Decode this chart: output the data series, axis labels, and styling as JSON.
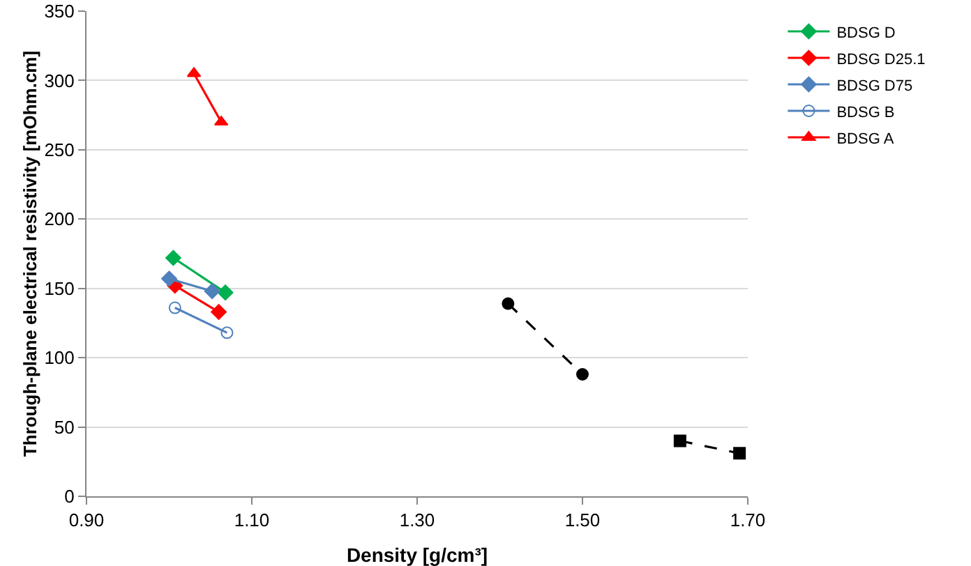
{
  "chart_data": {
    "type": "line",
    "xlabel": "Density [g/cm³]",
    "ylabel": "Through-plane electrical resistivity [mOhm.cm]",
    "xlim": [
      0.9,
      1.7
    ],
    "xticks": [
      {
        "value": 0.9,
        "label": "0.90"
      },
      {
        "value": 1.1,
        "label": "1.10"
      },
      {
        "value": 1.3,
        "label": "1.30"
      },
      {
        "value": 1.5,
        "label": "1.50"
      },
      {
        "value": 1.7,
        "label": "1.70"
      }
    ],
    "ylim": [
      0,
      350
    ],
    "yticks": [
      0,
      50,
      100,
      150,
      200,
      250,
      300,
      350
    ],
    "grid": "y",
    "legend": "right",
    "series": [
      {
        "color": "#000000",
        "marker": "square",
        "line_style": "dashed",
        "x": [
          1.618,
          1.69
        ],
        "values": [
          40,
          31
        ]
      },
      {
        "color": "#000000",
        "marker": "circle",
        "line_style": "dashed",
        "x": [
          1.41,
          1.5
        ],
        "values": [
          139,
          88
        ]
      },
      {
        "name": "BDSG D",
        "color": "#00b050",
        "marker": "diamond",
        "line_style": "solid",
        "x": [
          1.005,
          1.068
        ],
        "values": [
          172,
          147
        ]
      },
      {
        "name": "BDSG D25.1",
        "color": "#ff0000",
        "marker": "diamond",
        "line_style": "solid",
        "x": [
          1.007,
          1.06
        ],
        "values": [
          152,
          133
        ]
      },
      {
        "name": "BDSG D75",
        "color": "#4f81bd",
        "marker": "diamond",
        "line_style": "solid",
        "x": [
          1.0,
          1.052
        ],
        "values": [
          157,
          148
        ]
      },
      {
        "name": "BDSG B",
        "color": "#4f81bd",
        "marker": "circle-open",
        "line_style": "solid",
        "x": [
          1.007,
          1.07
        ],
        "values": [
          136,
          118
        ]
      },
      {
        "name": "BDSG A",
        "color": "#ff0000",
        "marker": "triangle",
        "line_style": "solid",
        "x": [
          1.03,
          1.063
        ],
        "values": [
          305,
          270
        ]
      }
    ]
  }
}
